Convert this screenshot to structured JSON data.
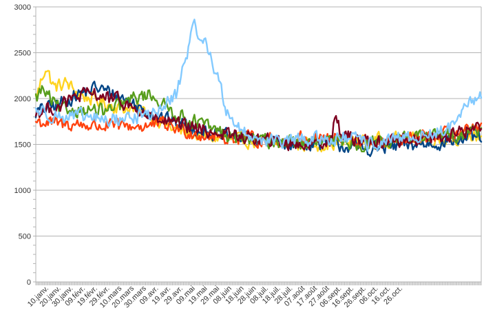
{
  "chart_data": {
    "type": "line",
    "title": "",
    "xlabel": "",
    "ylabel": "",
    "ylim": [
      0,
      3000
    ],
    "yticks": [
      0,
      500,
      1000,
      1500,
      2000,
      2500,
      3000
    ],
    "x_start_label": "01.janv.",
    "x_end_label": "31.oct.",
    "categories": [
      "10.janv.",
      "20.janv.",
      "30.janv.",
      "09.févr.",
      "19.févr.",
      "29.févr.",
      "10.mars",
      "20.mars",
      "30.mars",
      "09.avr.",
      "19.avr.",
      "29.avr.",
      "09.mai",
      "19.mai",
      "29.mai",
      "08.juin",
      "18.juin",
      "28.juin",
      "08.juil.",
      "18.juil.",
      "28.juil.",
      "07.août",
      "17.août",
      "27.août",
      "06.sept.",
      "16.sept.",
      "26.sept.",
      "06.oct.",
      "16.oct.",
      "26.oct."
    ],
    "grid": true,
    "legend": "none",
    "series": [
      {
        "color": "#ffd320",
        "anchors": [
          [
            0,
            2000
          ],
          [
            8,
            2350
          ],
          [
            15,
            2120
          ],
          [
            25,
            2170
          ],
          [
            35,
            2050
          ],
          [
            55,
            1950
          ],
          [
            90,
            1850
          ],
          [
            115,
            1650
          ],
          [
            140,
            1580
          ],
          [
            160,
            1560
          ],
          [
            200,
            1510
          ],
          [
            240,
            1500
          ],
          [
            270,
            1540
          ],
          [
            300,
            1560
          ],
          [
            330,
            1560
          ],
          [
            365,
            1600
          ]
        ]
      },
      {
        "color": "#004586",
        "anchors": [
          [
            0,
            1850
          ],
          [
            20,
            1950
          ],
          [
            35,
            2050
          ],
          [
            50,
            2120
          ],
          [
            70,
            2020
          ],
          [
            85,
            1900
          ],
          [
            110,
            1760
          ],
          [
            130,
            1680
          ],
          [
            150,
            1600
          ],
          [
            170,
            1560
          ],
          [
            200,
            1520
          ],
          [
            240,
            1510
          ],
          [
            270,
            1450
          ],
          [
            300,
            1480
          ],
          [
            330,
            1520
          ],
          [
            365,
            1580
          ]
        ]
      },
      {
        "color": "#ff420e",
        "anchors": [
          [
            0,
            1750
          ],
          [
            20,
            1720
          ],
          [
            35,
            1720
          ],
          [
            50,
            1700
          ],
          [
            70,
            1700
          ],
          [
            90,
            1700
          ],
          [
            105,
            1720
          ],
          [
            110,
            1700
          ],
          [
            130,
            1620
          ],
          [
            150,
            1580
          ],
          [
            170,
            1570
          ],
          [
            200,
            1540
          ],
          [
            230,
            1580
          ],
          [
            260,
            1540
          ],
          [
            280,
            1510
          ],
          [
            300,
            1540
          ],
          [
            330,
            1600
          ],
          [
            365,
            1650
          ]
        ]
      },
      {
        "color": "#579d1c",
        "anchors": [
          [
            0,
            2000
          ],
          [
            5,
            2100
          ],
          [
            20,
            1870
          ],
          [
            35,
            1880
          ],
          [
            60,
            1860
          ],
          [
            80,
            2000
          ],
          [
            95,
            2050
          ],
          [
            105,
            1920
          ],
          [
            120,
            1800
          ],
          [
            140,
            1700
          ],
          [
            160,
            1580
          ],
          [
            180,
            1550
          ],
          [
            220,
            1510
          ],
          [
            250,
            1530
          ],
          [
            270,
            1500
          ],
          [
            300,
            1570
          ],
          [
            340,
            1600
          ],
          [
            365,
            1660
          ]
        ]
      },
      {
        "color": "#7e0021",
        "anchors": [
          [
            0,
            1850
          ],
          [
            20,
            1920
          ],
          [
            35,
            2030
          ],
          [
            50,
            2050
          ],
          [
            60,
            2000
          ],
          [
            70,
            1970
          ],
          [
            85,
            1850
          ],
          [
            100,
            1760
          ],
          [
            120,
            1700
          ],
          [
            140,
            1650
          ],
          [
            160,
            1600
          ],
          [
            190,
            1540
          ],
          [
            220,
            1500
          ],
          [
            243,
            1560
          ],
          [
            245,
            1840
          ],
          [
            250,
            1600
          ],
          [
            280,
            1520
          ],
          [
            310,
            1560
          ],
          [
            340,
            1600
          ],
          [
            365,
            1700
          ]
        ]
      },
      {
        "color": "#83caff",
        "anchors": [
          [
            0,
            1880
          ],
          [
            20,
            1800
          ],
          [
            40,
            1800
          ],
          [
            60,
            1760
          ],
          [
            80,
            1800
          ],
          [
            95,
            1830
          ],
          [
            105,
            1900
          ],
          [
            115,
            2050
          ],
          [
            120,
            2300
          ],
          [
            125,
            2560
          ],
          [
            130,
            2780
          ],
          [
            135,
            2700
          ],
          [
            140,
            2560
          ],
          [
            145,
            2400
          ],
          [
            150,
            2200
          ],
          [
            155,
            1900
          ],
          [
            160,
            1800
          ],
          [
            170,
            1620
          ],
          [
            180,
            1580
          ],
          [
            200,
            1520
          ],
          [
            220,
            1560
          ],
          [
            240,
            1560
          ],
          [
            260,
            1560
          ],
          [
            275,
            1500
          ],
          [
            300,
            1560
          ],
          [
            320,
            1600
          ],
          [
            335,
            1650
          ],
          [
            345,
            1720
          ],
          [
            355,
            1950
          ],
          [
            365,
            2050
          ]
        ]
      }
    ]
  }
}
